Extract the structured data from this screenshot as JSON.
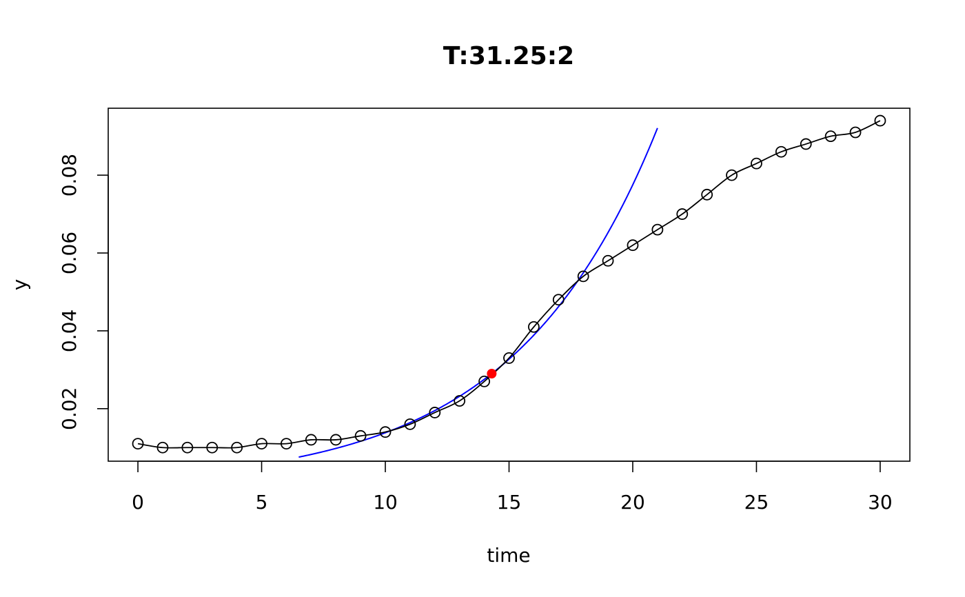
{
  "chart_data": {
    "type": "scatter",
    "title": "T:31.25:2",
    "xlabel": "time",
    "ylabel": "y",
    "xlim": [
      -1.2,
      31.2
    ],
    "ylim": [
      0.0065,
      0.0972
    ],
    "xticks": [
      0,
      5,
      10,
      15,
      20,
      25,
      30
    ],
    "yticks": [
      0.02,
      0.04,
      0.06,
      0.08
    ],
    "xtick_labels": [
      "0",
      "5",
      "10",
      "15",
      "20",
      "25",
      "30"
    ],
    "ytick_labels": [
      "0.02",
      "0.04",
      "0.06",
      "0.08"
    ],
    "grid": false,
    "series": [
      {
        "kind": "points-with-smooth-line",
        "color": "#000000",
        "x": [
          0,
          1,
          2,
          3,
          4,
          5,
          6,
          7,
          8,
          9,
          10,
          11,
          12,
          13,
          14,
          15,
          16,
          17,
          18,
          19,
          20,
          21,
          22,
          23,
          24,
          25,
          26,
          27,
          28,
          29,
          30
        ],
        "y": [
          0.011,
          0.01,
          0.01,
          0.01,
          0.01,
          0.011,
          0.011,
          0.012,
          0.012,
          0.013,
          0.014,
          0.016,
          0.019,
          0.022,
          0.027,
          0.033,
          0.041,
          0.048,
          0.054,
          0.058,
          0.062,
          0.066,
          0.07,
          0.075,
          0.08,
          0.083,
          0.086,
          0.088,
          0.09,
          0.091,
          0.094
        ]
      },
      {
        "kind": "exponential-fit",
        "color": "#0000ff",
        "x0": 14.3,
        "y0": 0.029,
        "rate": 0.1725,
        "x_range": [
          6.5,
          21.0
        ]
      },
      {
        "kind": "highlight-point",
        "color": "#ff0000",
        "x": [
          14.3
        ],
        "y": [
          0.029
        ]
      }
    ]
  }
}
